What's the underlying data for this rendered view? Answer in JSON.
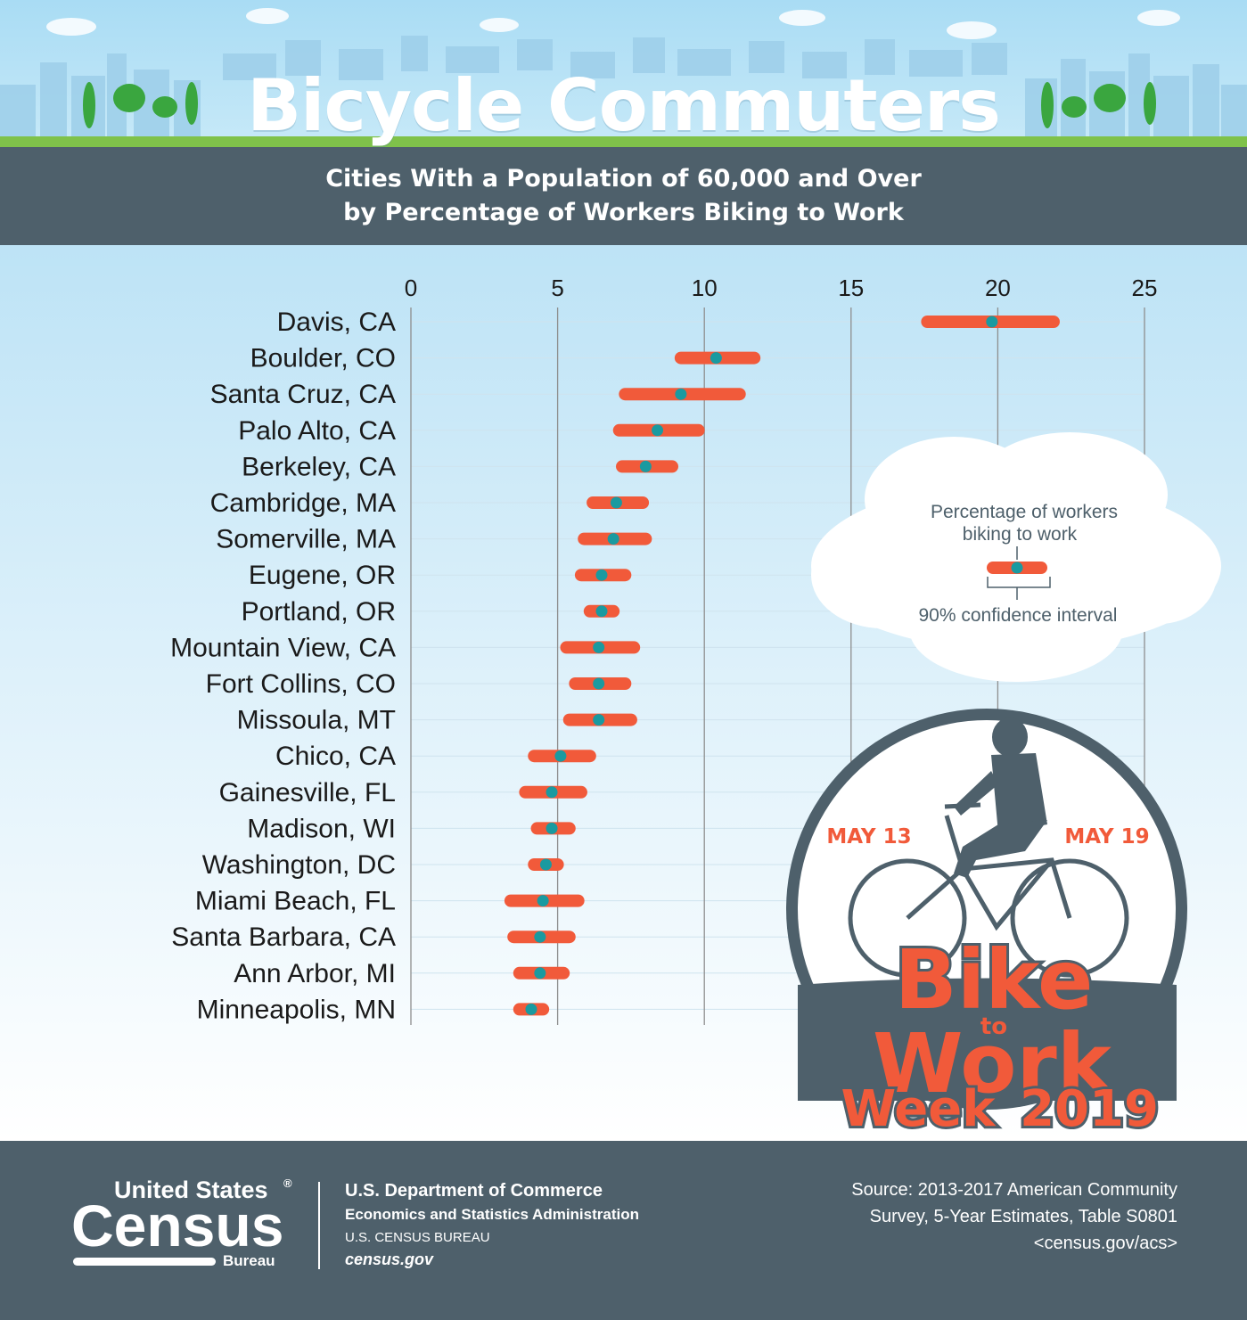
{
  "header": {
    "title": "Bicycle Commuters",
    "subtitle_line1": "Cities With a Population of 60,000 and Over",
    "subtitle_line2": "by Percentage of Workers Biking to Work"
  },
  "legend": {
    "estimate_label_line1": "Percentage of workers",
    "estimate_label_line2": "biking to work",
    "interval_label": "90% confidence interval"
  },
  "badge": {
    "start_date": "MAY 13",
    "end_date": "MAY 19",
    "word_bike": "Bike",
    "word_to": "to",
    "word_work": "Work",
    "word_week": "Week",
    "year": "2019"
  },
  "footer": {
    "logo_line1": "United States",
    "logo_registered": "®",
    "logo_line2": "Census",
    "logo_line3": "Bureau",
    "dept_line1": "U.S. Department of Commerce",
    "dept_line2": "Economics and Statistics Administration",
    "dept_line3": "U.S. CENSUS BUREAU",
    "dept_line4": "census.gov",
    "source_line1": "Source: 2013-2017 American Community",
    "source_line2": "Survey, 5-Year Estimates, Table S0801",
    "source_line3": "<census.gov/acs>"
  },
  "colors": {
    "interval": "#f15a3a",
    "estimate": "#1a9aa0",
    "band": "#4e606b",
    "grid": "#8e8e8e"
  },
  "chart_data": {
    "type": "scatter",
    "x_ticks": [
      0,
      5,
      10,
      15,
      20,
      25
    ],
    "xlim": [
      0,
      25
    ],
    "grid": true,
    "points": [
      {
        "city": "Davis, CA",
        "estimate": 19.8,
        "low": 17.6,
        "high": 21.9
      },
      {
        "city": "Boulder, CO",
        "estimate": 10.4,
        "low": 9.2,
        "high": 11.7
      },
      {
        "city": "Santa Cruz, CA",
        "estimate": 9.2,
        "low": 7.3,
        "high": 11.2
      },
      {
        "city": "Palo Alto, CA",
        "estimate": 8.4,
        "low": 7.1,
        "high": 9.8
      },
      {
        "city": "Berkeley, CA",
        "estimate": 8.0,
        "low": 7.2,
        "high": 8.9
      },
      {
        "city": "Cambridge, MA",
        "estimate": 7.0,
        "low": 6.2,
        "high": 7.9
      },
      {
        "city": "Somerville, MA",
        "estimate": 6.9,
        "low": 5.9,
        "high": 8.0
      },
      {
        "city": "Eugene, OR",
        "estimate": 6.5,
        "low": 5.8,
        "high": 7.3
      },
      {
        "city": "Portland, OR",
        "estimate": 6.5,
        "low": 6.1,
        "high": 6.9
      },
      {
        "city": "Mountain View, CA",
        "estimate": 6.4,
        "low": 5.3,
        "high": 7.6
      },
      {
        "city": "Fort Collins, CO",
        "estimate": 6.4,
        "low": 5.6,
        "high": 7.3
      },
      {
        "city": "Missoula, MT",
        "estimate": 6.4,
        "low": 5.4,
        "high": 7.5
      },
      {
        "city": "Chico, CA",
        "estimate": 5.1,
        "low": 4.2,
        "high": 6.1
      },
      {
        "city": "Gainesville, FL",
        "estimate": 4.8,
        "low": 3.9,
        "high": 5.8
      },
      {
        "city": "Madison, WI",
        "estimate": 4.8,
        "low": 4.3,
        "high": 5.4
      },
      {
        "city": "Washington, DC",
        "estimate": 4.6,
        "low": 4.2,
        "high": 5.0
      },
      {
        "city": "Miami Beach, FL",
        "estimate": 4.5,
        "low": 3.4,
        "high": 5.7
      },
      {
        "city": "Santa Barbara, CA",
        "estimate": 4.4,
        "low": 3.5,
        "high": 5.4
      },
      {
        "city": "Ann Arbor, MI",
        "estimate": 4.4,
        "low": 3.7,
        "high": 5.2
      },
      {
        "city": "Minneapolis, MN",
        "estimate": 4.1,
        "low": 3.7,
        "high": 4.5
      }
    ]
  }
}
